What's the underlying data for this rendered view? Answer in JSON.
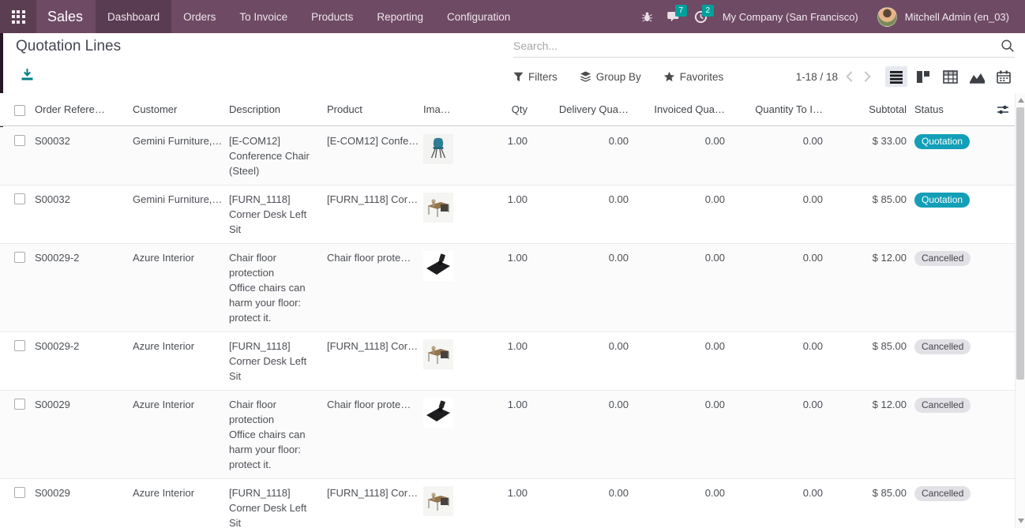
{
  "nav": {
    "app_name": "Sales",
    "menu": [
      {
        "label": "Dashboard",
        "active": true
      },
      {
        "label": "Orders",
        "active": false
      },
      {
        "label": "To Invoice",
        "active": false
      },
      {
        "label": "Products",
        "active": false
      },
      {
        "label": "Reporting",
        "active": false
      },
      {
        "label": "Configuration",
        "active": false
      }
    ],
    "message_count": "7",
    "activity_count": "2",
    "company": "My Company (San Francisco)",
    "user": "Mitchell Admin (en_03)"
  },
  "page": {
    "title": "Quotation Lines"
  },
  "search": {
    "placeholder": "Search..."
  },
  "control_bar": {
    "filters_label": "Filters",
    "group_by_label": "Group By",
    "favorites_label": "Favorites",
    "pager_text": "1-18 / 18"
  },
  "table": {
    "headers": {
      "order_ref": "Order Refere…",
      "customer": "Customer",
      "description": "Description",
      "product": "Product",
      "image": "Ima…",
      "qty": "Qty",
      "delivery_qty": "Delivery Qua…",
      "invoiced_qty": "Invoiced Qua…",
      "qty_to_invoice": "Quantity To I…",
      "subtotal": "Subtotal",
      "status": "Status"
    },
    "rows": [
      {
        "order_ref": "S00032",
        "customer": "Gemini Furniture,…",
        "description": "[E-COM12] Conference Chair (Steel)",
        "product": "[E-COM12] Confe…",
        "image": "chair",
        "qty": "1.00",
        "delivery_qty": "0.00",
        "invoiced_qty": "0.00",
        "qty_to_invoice": "0.00",
        "subtotal": "$ 33.00",
        "status": "Quotation",
        "status_type": "info"
      },
      {
        "order_ref": "S00032",
        "customer": "Gemini Furniture,…",
        "description": "[FURN_1118] Corner Desk Left Sit",
        "product": "[FURN_1118] Cor…",
        "image": "desk",
        "qty": "1.00",
        "delivery_qty": "0.00",
        "invoiced_qty": "0.00",
        "qty_to_invoice": "0.00",
        "subtotal": "$ 85.00",
        "status": "Quotation",
        "status_type": "info"
      },
      {
        "order_ref": "S00029-2",
        "customer": "Azure Interior",
        "description": "Chair floor protection\nOffice chairs can harm your floor: protect it.",
        "product": "Chair floor prote…",
        "image": "mat",
        "qty": "1.00",
        "delivery_qty": "0.00",
        "invoiced_qty": "0.00",
        "qty_to_invoice": "0.00",
        "subtotal": "$ 12.00",
        "status": "Cancelled",
        "status_type": "muted"
      },
      {
        "order_ref": "S00029-2",
        "customer": "Azure Interior",
        "description": "[FURN_1118] Corner Desk Left Sit",
        "product": "[FURN_1118] Cor…",
        "image": "desk",
        "qty": "1.00",
        "delivery_qty": "0.00",
        "invoiced_qty": "0.00",
        "qty_to_invoice": "0.00",
        "subtotal": "$ 85.00",
        "status": "Cancelled",
        "status_type": "muted"
      },
      {
        "order_ref": "S00029",
        "customer": "Azure Interior",
        "description": "Chair floor protection\nOffice chairs can harm your floor: protect it.",
        "product": "Chair floor prote…",
        "image": "mat",
        "qty": "1.00",
        "delivery_qty": "0.00",
        "invoiced_qty": "0.00",
        "qty_to_invoice": "0.00",
        "subtotal": "$ 12.00",
        "status": "Cancelled",
        "status_type": "muted"
      },
      {
        "order_ref": "S00029",
        "customer": "Azure Interior",
        "description": "[FURN_1118] Corner Desk Left Sit",
        "product": "[FURN_1118] Cor…",
        "image": "desk",
        "qty": "1.00",
        "delivery_qty": "0.00",
        "invoiced_qty": "0.00",
        "qty_to_invoice": "0.00",
        "subtotal": "$ 85.00",
        "status": "Cancelled",
        "status_type": "muted"
      }
    ]
  },
  "colors": {
    "nav_bg": "#6e4a64",
    "accent_teal": "#00a09d",
    "badge_info": "#129fb7",
    "badge_muted_bg": "#e2e2e6",
    "export_icon": "#017e84"
  }
}
